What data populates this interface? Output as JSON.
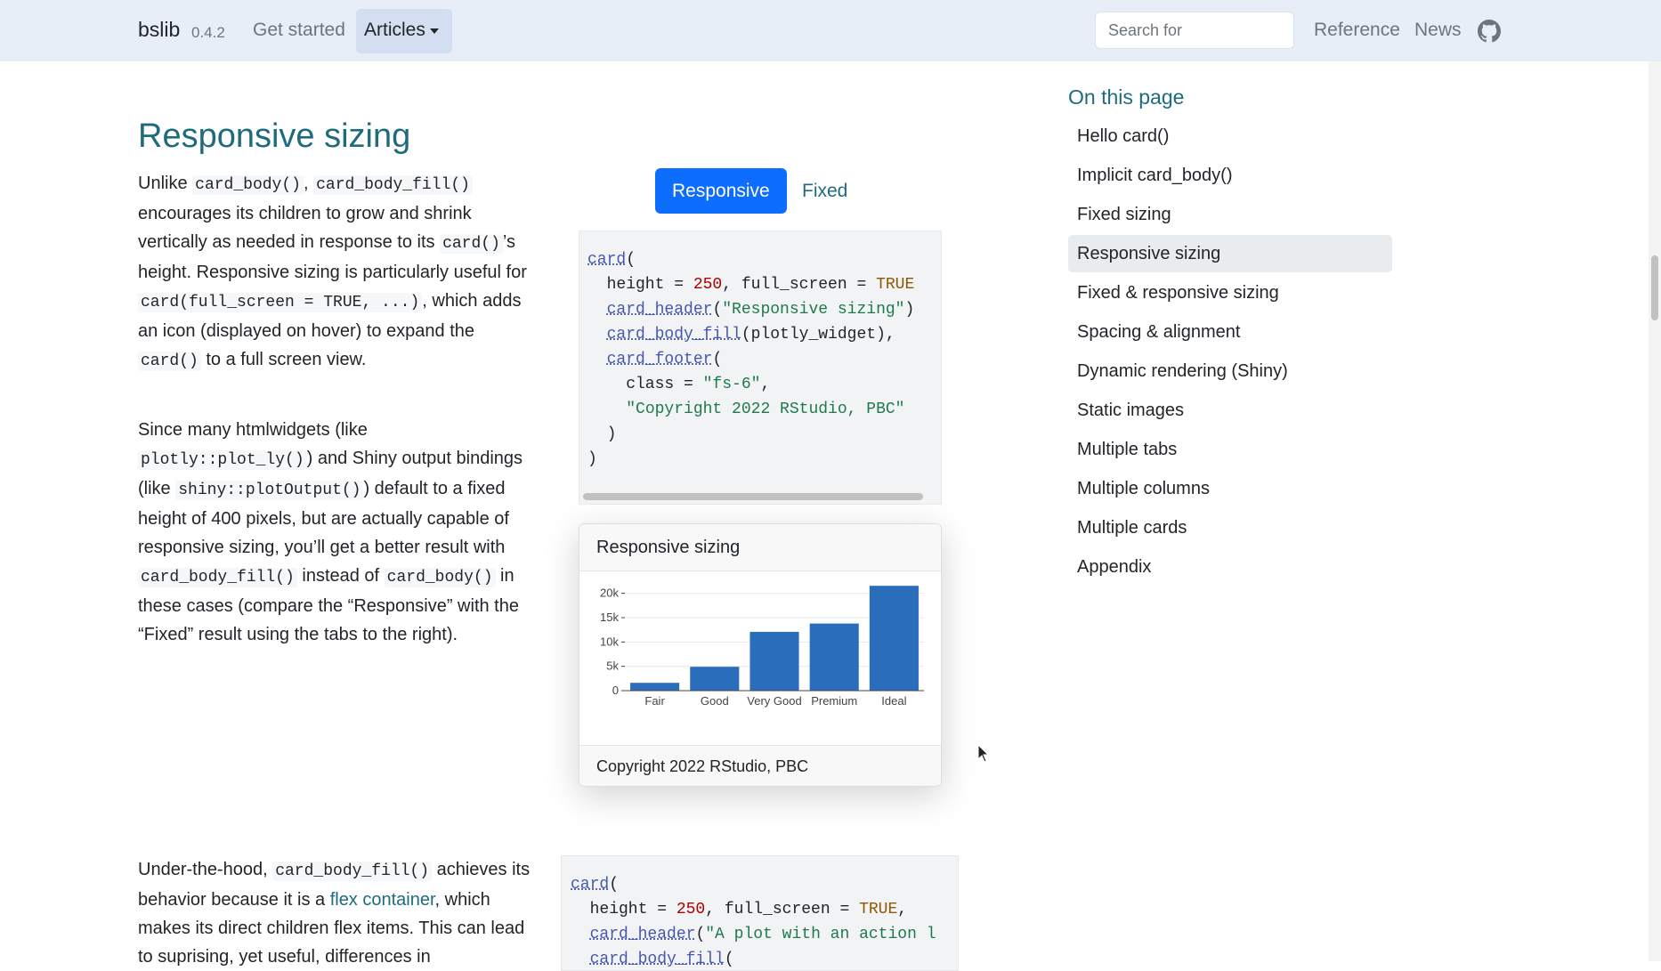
{
  "nav": {
    "brand": "bslib",
    "version": "0.4.2",
    "links": [
      "Get started",
      "Articles",
      "Reference",
      "News"
    ],
    "search_placeholder": "Search for"
  },
  "toc": {
    "title": "On this page",
    "items": [
      "Hello card()",
      "Implicit card_body()",
      "Fixed sizing",
      "Responsive sizing",
      "Fixed & responsive sizing",
      "Spacing & alignment",
      "Dynamic rendering (Shiny)",
      "Static images",
      "Multiple tabs",
      "Multiple columns",
      "Multiple cards",
      "Appendix"
    ],
    "active": 3
  },
  "article": {
    "heading": "Responsive sizing",
    "paragraphs": [
      [
        [
          "t",
          "Unlike "
        ],
        [
          "c",
          "card_body()"
        ],
        [
          "t",
          ", "
        ],
        [
          "c",
          "card_body_fill()"
        ],
        [
          "t",
          " encourages its children to grow and shrink vertically as needed in response to its "
        ],
        [
          "c",
          "card()"
        ],
        [
          "t",
          "’s height. Responsive sizing is particularly useful for "
        ],
        [
          "c",
          "card(full_screen = TRUE, ...)"
        ],
        [
          "t",
          ", which adds an icon (displayed on hover) to expand the "
        ],
        [
          "c",
          "card()"
        ],
        [
          "t",
          " to a full screen view."
        ]
      ],
      [
        [
          "t",
          "Since many htmlwidgets (like "
        ],
        [
          "c",
          "plotly::plot_ly()"
        ],
        [
          "t",
          ") and Shiny output bindings (like "
        ],
        [
          "c",
          "shiny::plotOutput()"
        ],
        [
          "t",
          ") default to a fixed height of 400 pixels, but are actually capable of responsive sizing, you’ll get a better result with "
        ],
        [
          "c",
          "card_body_fill()"
        ],
        [
          "t",
          " instead of "
        ],
        [
          "c",
          "card_body()"
        ],
        [
          "t",
          " in these cases (compare the “Responsive” with the “Fixed” result using the tabs to the right)."
        ]
      ],
      [
        [
          "t",
          "Under-the-hood, "
        ],
        [
          "c",
          "card_body_fill()"
        ],
        [
          "t",
          " achieves its behavior because it is a "
        ],
        [
          "a",
          "flex container"
        ],
        [
          "t",
          ", which makes its direct children flex items. This can lead to suprising, yet useful, differences in"
        ]
      ]
    ],
    "tabs": [
      "Responsive",
      "Fixed"
    ],
    "active_tab": 0,
    "code_blocks": [
      [
        [
          [
            "fn",
            "card"
          ],
          [
            "p",
            "("
          ]
        ],
        [
          [
            "p",
            "  height = "
          ],
          [
            "num",
            "250"
          ],
          [
            "p",
            ", full_screen = "
          ],
          [
            "kw",
            "TRUE"
          ]
        ],
        [
          [
            "p",
            "  "
          ],
          [
            "fn",
            "card_header"
          ],
          [
            "p",
            "("
          ],
          [
            "str",
            "\"Responsive sizing\""
          ],
          [
            "p",
            ")"
          ]
        ],
        [
          [
            "p",
            "  "
          ],
          [
            "fn",
            "card_body_fill"
          ],
          [
            "p",
            "(plotly_widget),"
          ]
        ],
        [
          [
            "p",
            "  "
          ],
          [
            "fn",
            "card_footer"
          ],
          [
            "p",
            "("
          ]
        ],
        [
          [
            "p",
            "    class = "
          ],
          [
            "str",
            "\"fs-6\""
          ],
          [
            "p",
            ","
          ]
        ],
        [
          [
            "p",
            "    "
          ],
          [
            "str",
            "\"Copyright 2022 RStudio, PBC\""
          ]
        ],
        [
          [
            "p",
            "  )"
          ]
        ],
        [
          [
            "p",
            ")"
          ]
        ]
      ],
      [
        [
          [
            "fn",
            "card"
          ],
          [
            "p",
            "("
          ]
        ],
        [
          [
            "p",
            "  height = "
          ],
          [
            "num",
            "250"
          ],
          [
            "p",
            ", full_screen = "
          ],
          [
            "kw",
            "TRUE"
          ],
          [
            "p",
            ","
          ]
        ],
        [
          [
            "p",
            "  "
          ],
          [
            "fn",
            "card_header"
          ],
          [
            "p",
            "("
          ],
          [
            "str",
            "\"A plot with an action l"
          ]
        ],
        [
          [
            "p",
            "  "
          ],
          [
            "fn",
            "card_body_fill"
          ],
          [
            "p",
            "("
          ]
        ]
      ]
    ],
    "card": {
      "header": "Responsive sizing",
      "footer": "Copyright 2022 RStudio, PBC",
      "chart_data": {
        "type": "bar",
        "categories": [
          "Fair",
          "Good",
          "Very Good",
          "Premium",
          "Ideal"
        ],
        "values": [
          1610,
          4906,
          12082,
          13791,
          21551
        ],
        "color": "#2a6ebb",
        "ylim": [
          0,
          22500
        ],
        "yticks": [
          0,
          {
            "value": 5000,
            "label": "5k"
          },
          {
            "value": 10000,
            "label": "10k"
          },
          {
            "value": 15000,
            "label": "15k"
          },
          {
            "value": 20000,
            "label": "20k"
          }
        ],
        "grid": true
      }
    }
  }
}
